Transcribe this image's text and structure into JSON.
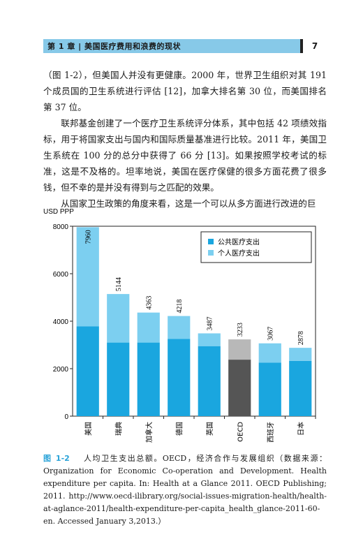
{
  "header": {
    "title": "第 1 章 | 美国医疗费用和浪费的现状",
    "page_number": "7"
  },
  "body": {
    "paragraphs": [
      "（图 1-2），但美国人并没有更健康。2000 年，世界卫生组织对其 191 个成员国的卫生系统进行评估 [12]，加拿大排名第 30 位，而美国排名第 37 位。",
      "联邦基金创建了一个医疗卫生系统评分体系，其中包括 42 项绩效指标，用于将国家支出与国内和国际质量基准进行比较。2011 年，美国卫生系统在 100 分的总分中获得了 66 分 [13]。如果按照学校考试的标准，这是不及格的。坦率地说，美国在医疗保健的很多方面花费了很多钱，但不幸的是并没有得到与之匹配的效果。",
      "从国家卫生政策的角度来看，这是一个可以从多方面进行改进的巨"
    ]
  },
  "chart_data": {
    "type": "bar",
    "stacked": true,
    "ylabel": "USD PPP",
    "ylim": [
      0,
      8000
    ],
    "yticks": [
      0,
      2000,
      4000,
      6000,
      8000
    ],
    "categories": [
      "美国",
      "瑞典",
      "加拿大",
      "德国",
      "英国",
      "OECD",
      "西班牙",
      "日本"
    ],
    "totals": [
      7960,
      5144,
      4363,
      4218,
      3487,
      3233,
      3067,
      2878
    ],
    "total_labels": [
      "7960",
      "5144",
      "4363",
      "4218",
      "3487",
      "3233",
      "3067",
      "2878"
    ],
    "series": [
      {
        "name": "公共医疗支出",
        "values": [
          3780,
          3100,
          3100,
          3250,
          2950,
          2380,
          2250,
          2330
        ]
      },
      {
        "name": "个人医疗支出",
        "values": [
          4180,
          2044,
          1263,
          968,
          537,
          853,
          817,
          548
        ]
      }
    ],
    "legend_position": "top-right",
    "grid": false,
    "colors": {
      "public": "#1aa6df",
      "private": "#7ccff0",
      "oecd_public": "#555555",
      "oecd_private": "#b8b8b8"
    }
  },
  "caption": {
    "label": "图 1-2",
    "text": "人均卫生支出总额。OECD，经济合作与发展组织（数据来源：Organization for Economic Co-operation and Development. Health expenditure per capita. In: Health at a Glance 2011. OECD Publishing; 2011. http://www.oecd-ilibrary.org/social-issues-migration-health/health-at-aglance-2011/health-expenditure-per-capita_health_glance-2011-60-en. Accessed January 3,2013.）"
  }
}
